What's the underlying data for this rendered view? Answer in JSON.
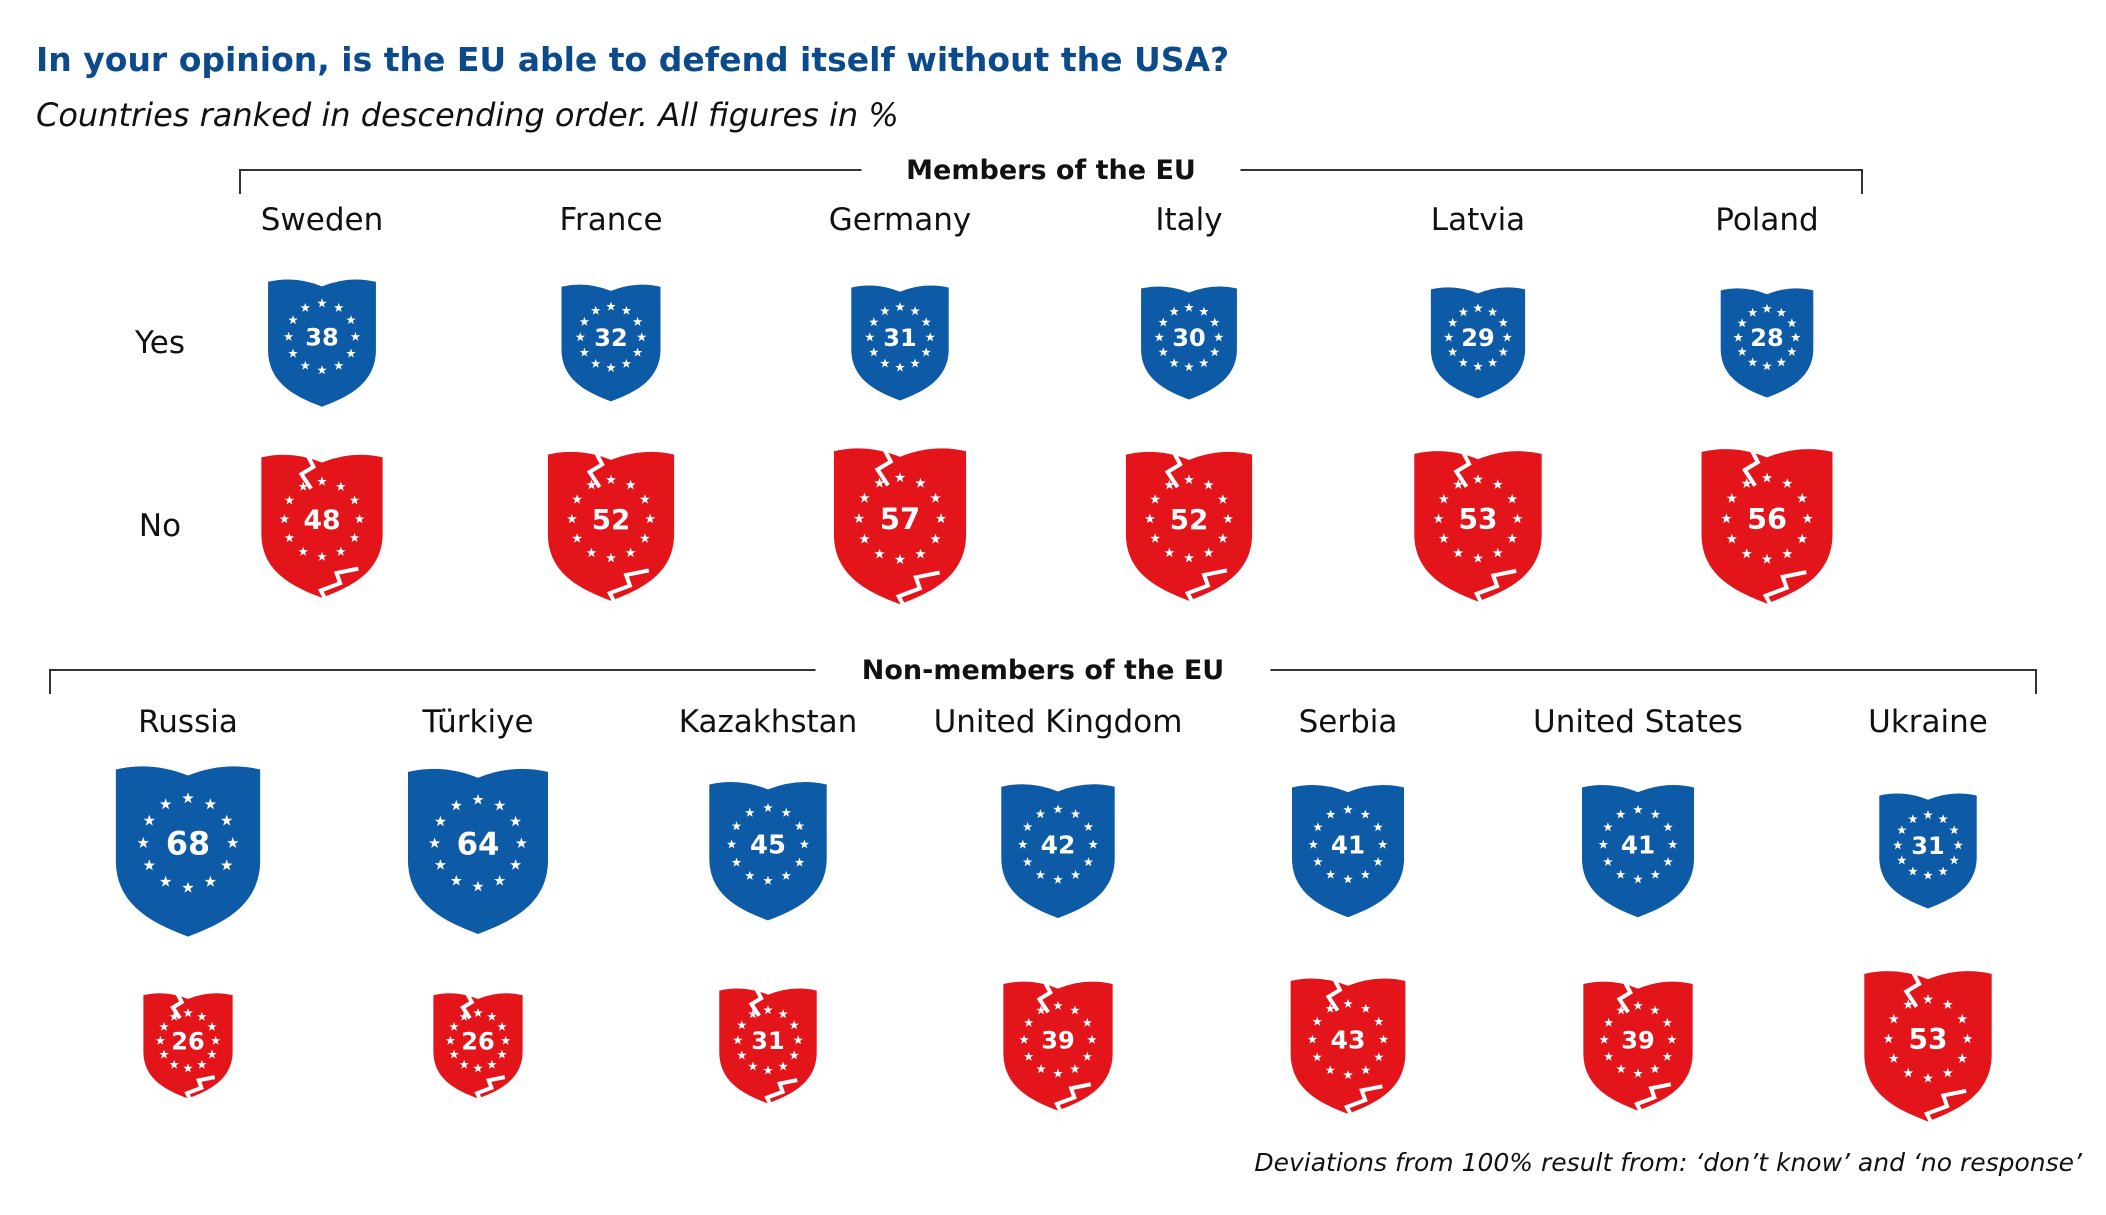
{
  "title": "In your opinion, is the EU able to defend itself without the USA?",
  "subtitle": "Countries ranked in descending order. All figures in %",
  "footnote": "Deviations from 100% result from: ‘don’t know’ and ‘no response’",
  "colors": {
    "yes": "#0d5aa6",
    "no": "#e3151b",
    "title": "#0b4a8b"
  },
  "chart_data": {
    "type": "pictograph",
    "series": [
      {
        "name": "Yes",
        "color": "#0d5aa6"
      },
      {
        "name": "No",
        "color": "#e3151b"
      }
    ],
    "groups": [
      {
        "label": "Members of the EU",
        "row_labels": [
          "Yes",
          "No"
        ],
        "categories": [
          "Sweden",
          "France",
          "Germany",
          "Italy",
          "Latvia",
          "Poland"
        ],
        "yes": [
          38,
          32,
          31,
          30,
          29,
          28
        ],
        "no": [
          48,
          52,
          57,
          52,
          53,
          56
        ]
      },
      {
        "label": "Non-members of the EU",
        "row_labels": [],
        "categories": [
          "Russia",
          "Türkiye",
          "Kazakhstan",
          "United Kingdom",
          "Serbia",
          "United States",
          "Ukraine"
        ],
        "yes": [
          68,
          64,
          45,
          42,
          41,
          41,
          31
        ],
        "no": [
          26,
          26,
          31,
          39,
          43,
          39,
          53
        ]
      }
    ]
  }
}
